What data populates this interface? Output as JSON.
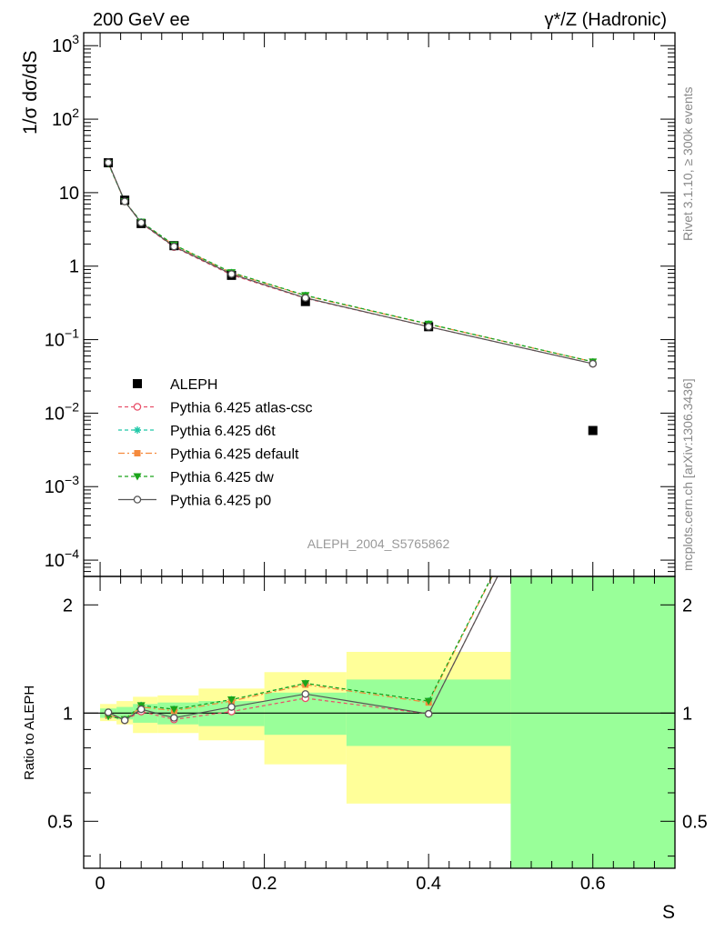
{
  "header": {
    "left": "200 GeV ee",
    "right": "γ*/Z (Hadronic)"
  },
  "side_labels": {
    "rivet": "Rivet 3.1.10, ≥ 300k events",
    "mcplots": "mcplots.cern.ch [arXiv:1306.3436]"
  },
  "axes": {
    "main_ylabel": "1/σ  dσ/dS",
    "ratio_ylabel": "Ratio to ALEPH",
    "xlabel": "S",
    "watermark": "ALEPH_2004_S5765862"
  },
  "colors": {
    "data": "#000000",
    "atlas": "#e8506a",
    "d6t": "#20c8a8",
    "default": "#f58a3c",
    "dw": "#1aa51a",
    "p0": "#555555",
    "band_inner": "#99ff99",
    "band_outer": "#ffff99"
  },
  "chart_data": [
    {
      "type": "line",
      "title": "",
      "xlabel": "S",
      "ylabel": "1/σ  dσ/dS",
      "yscale": "log",
      "xlim": [
        -0.02,
        0.7
      ],
      "ylim": [
        6e-05,
        1500
      ],
      "yticks": [
        {
          "v": 1000,
          "base": "10",
          "exp": "3"
        },
        {
          "v": 100,
          "base": "10",
          "exp": "2"
        },
        {
          "v": 10,
          "base": "10",
          "exp": ""
        },
        {
          "v": 1,
          "base": "1",
          "exp": ""
        },
        {
          "v": 0.1,
          "base": "10",
          "exp": "−1"
        },
        {
          "v": 0.01,
          "base": "10",
          "exp": "−2"
        },
        {
          "v": 0.001,
          "base": "10",
          "exp": "−3"
        },
        {
          "v": 0.0001,
          "base": "10",
          "exp": "−4"
        }
      ],
      "data_label": "ALEPH",
      "x": [
        0.01,
        0.03,
        0.05,
        0.09,
        0.16,
        0.25,
        0.4,
        0.6
      ],
      "data_values": [
        25.5,
        7.9,
        3.8,
        1.9,
        0.75,
        0.33,
        0.15,
        0.0058
      ],
      "series": [
        {
          "name": "Pythia 6.425 atlas-csc",
          "key": "atlas",
          "marker": "circle-open",
          "dash": "4,3",
          "values": [
            25.6,
            7.6,
            3.85,
            1.82,
            0.76,
            0.365,
            0.15,
            0.047
          ]
        },
        {
          "name": "Pythia 6.425 d6t",
          "key": "d6t",
          "marker": "star",
          "dash": "4,3",
          "values": [
            25.0,
            7.6,
            4.0,
            1.95,
            0.82,
            0.4,
            0.163,
            0.05
          ]
        },
        {
          "name": "Pythia 6.425 default",
          "key": "default",
          "marker": "square",
          "dash": "7,3,2,3",
          "values": [
            25.1,
            7.6,
            3.95,
            1.93,
            0.81,
            0.395,
            0.162,
            0.05
          ]
        },
        {
          "name": "Pythia 6.425 dw",
          "key": "dw",
          "marker": "triangle-down",
          "dash": "4,3",
          "values": [
            25.0,
            7.6,
            4.0,
            1.95,
            0.82,
            0.4,
            0.163,
            0.05
          ]
        },
        {
          "name": "Pythia 6.425 p0",
          "key": "p0",
          "marker": "circle-open",
          "dash": "",
          "values": [
            25.7,
            7.6,
            3.9,
            1.85,
            0.78,
            0.37,
            0.15,
            0.047
          ]
        }
      ]
    },
    {
      "type": "line",
      "title": "",
      "xlabel": "S",
      "ylabel": "Ratio to ALEPH",
      "yscale": "log",
      "xlim": [
        -0.02,
        0.7
      ],
      "ylim": [
        0.37,
        2.4
      ],
      "xticks": [
        {
          "v": 0,
          "label": "0"
        },
        {
          "v": 0.2,
          "label": "0.2"
        },
        {
          "v": 0.4,
          "label": "0.4"
        },
        {
          "v": 0.6,
          "label": "0.6"
        }
      ],
      "yticks": [
        {
          "v": 0.5,
          "label": "0.5"
        },
        {
          "v": 1,
          "label": "1"
        },
        {
          "v": 2,
          "label": "2"
        }
      ],
      "bands": [
        {
          "x": [
            0.0,
            0.02
          ],
          "inner": [
            0.97,
            1.03
          ],
          "outer": [
            0.95,
            1.06
          ]
        },
        {
          "x": [
            0.02,
            0.04
          ],
          "inner": [
            0.96,
            1.04
          ],
          "outer": [
            0.93,
            1.08
          ]
        },
        {
          "x": [
            0.04,
            0.07
          ],
          "inner": [
            0.94,
            1.06
          ],
          "outer": [
            0.88,
            1.11
          ]
        },
        {
          "x": [
            0.07,
            0.12
          ],
          "inner": [
            0.93,
            1.07
          ],
          "outer": [
            0.88,
            1.12
          ]
        },
        {
          "x": [
            0.12,
            0.2
          ],
          "inner": [
            0.92,
            1.08
          ],
          "outer": [
            0.84,
            1.17
          ]
        },
        {
          "x": [
            0.2,
            0.3
          ],
          "inner": [
            0.87,
            1.14
          ],
          "outer": [
            0.72,
            1.3
          ]
        },
        {
          "x": [
            0.3,
            0.5
          ],
          "inner": [
            0.81,
            1.24
          ],
          "outer": [
            0.56,
            1.48
          ]
        },
        {
          "x": [
            0.5,
            0.7
          ],
          "inner": [
            0.37,
            2.4
          ],
          "outer": [
            0.37,
            2.4
          ]
        }
      ],
      "series": [
        {
          "name": "Pythia 6.425 atlas-csc",
          "key": "atlas",
          "values": [
            1.0,
            0.955,
            1.01,
            0.96,
            1.01,
            1.1,
            0.995,
            8.1
          ]
        },
        {
          "name": "Pythia 6.425 d6t",
          "key": "d6t",
          "values": [
            0.98,
            0.96,
            1.05,
            1.025,
            1.09,
            1.21,
            1.08,
            8.6
          ]
        },
        {
          "name": "Pythia 6.425 default",
          "key": "default",
          "values": [
            0.985,
            0.96,
            1.04,
            1.015,
            1.08,
            1.2,
            1.07,
            8.6
          ]
        },
        {
          "name": "Pythia 6.425 dw",
          "key": "dw",
          "values": [
            0.98,
            0.96,
            1.05,
            1.025,
            1.09,
            1.21,
            1.08,
            8.6
          ]
        },
        {
          "name": "Pythia 6.425 p0",
          "key": "p0",
          "values": [
            1.005,
            0.955,
            1.025,
            0.97,
            1.04,
            1.13,
            0.995,
            8.1
          ]
        }
      ]
    }
  ]
}
